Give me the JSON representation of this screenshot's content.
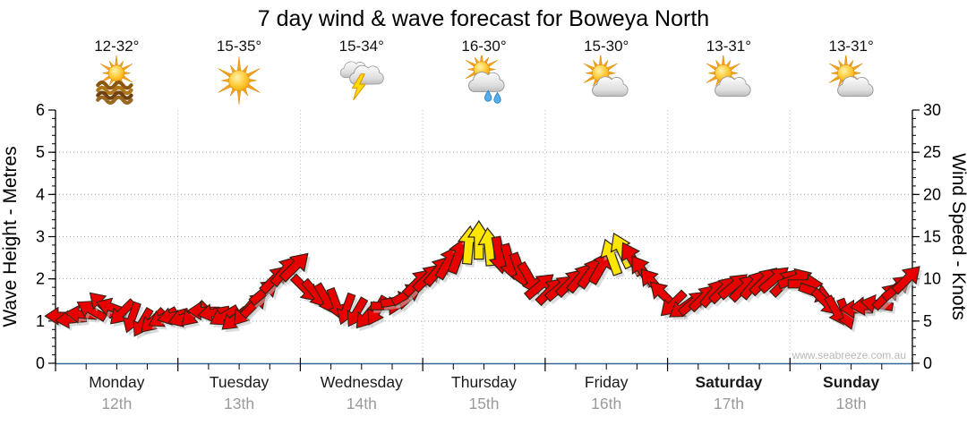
{
  "title": "7 day wind & wave forecast for Boweya North",
  "watermark": "www.seabreeze.com.au",
  "colors": {
    "arrow_red": "#E60000",
    "arrow_yellow": "#FFE600",
    "arrow_outline": "#2E2217",
    "baseline_blue": "#3A6795",
    "grid_grey": "#A6A6A6",
    "day_label": "#1A1A1A",
    "date_grey": "#9A9A9A",
    "watermark_grey": "#B8B8B8",
    "axis_black": "#000000"
  },
  "chart_data": {
    "type": "scatter",
    "subtype": "wind-arrow-forecast",
    "title": "7 day wind & wave forecast for Boweya North",
    "y_left": {
      "label": "Wave Height - Metres",
      "min": 0,
      "max": 6,
      "major_tick": 1,
      "minor_tick": 0.2,
      "gridlines": [
        1,
        2,
        3,
        4,
        5
      ]
    },
    "y_right": {
      "label": "Wind Speed - Knots",
      "min": 0,
      "max": 30,
      "major_tick": 5,
      "minor_tick": 1,
      "gridlines": [
        5,
        10,
        15,
        20,
        25
      ]
    },
    "x": {
      "days": 7,
      "points_per_day": 12,
      "interval_hours": 2
    },
    "days": [
      {
        "name": "Monday",
        "date": "12th",
        "temp_range": "12-32°",
        "icon": "sun-water",
        "weekend": false
      },
      {
        "name": "Tuesday",
        "date": "13th",
        "temp_range": "15-35°",
        "icon": "sunny",
        "weekend": false
      },
      {
        "name": "Wednesday",
        "date": "14th",
        "temp_range": "15-34°",
        "icon": "thunderstorm",
        "weekend": false
      },
      {
        "name": "Thursday",
        "date": "15th",
        "temp_range": "16-30°",
        "icon": "sun-cloud-rain",
        "weekend": false
      },
      {
        "name": "Friday",
        "date": "16th",
        "temp_range": "15-30°",
        "icon": "sun-cloud",
        "weekend": false
      },
      {
        "name": "Saturday",
        "date": "17th",
        "temp_range": "13-31°",
        "icon": "sun-cloud",
        "weekend": true
      },
      {
        "name": "Sunday",
        "date": "18th",
        "temp_range": "13-31°",
        "icon": "sun-cloud",
        "weekend": true
      }
    ],
    "wind_arrows": {
      "format": "[knots, direction_deg_pointing_toward(0=N,90=E,180=S,270=W), color r|y]",
      "points": [
        [
          5.6,
          270,
          "r"
        ],
        [
          5.2,
          265,
          "r"
        ],
        [
          5.8,
          275,
          "r"
        ],
        [
          6.3,
          300,
          "r"
        ],
        [
          7.0,
          315,
          "r"
        ],
        [
          6.6,
          290,
          "r"
        ],
        [
          6.0,
          225,
          "r"
        ],
        [
          5.4,
          200,
          "r"
        ],
        [
          4.8,
          210,
          "r"
        ],
        [
          5.0,
          225,
          "r"
        ],
        [
          5.4,
          240,
          "r"
        ],
        [
          5.6,
          255,
          "r"
        ],
        [
          5.4,
          250,
          "r"
        ],
        [
          5.8,
          225,
          "r"
        ],
        [
          6.2,
          270,
          "r"
        ],
        [
          6.0,
          260,
          "r"
        ],
        [
          5.6,
          240,
          "r"
        ],
        [
          5.2,
          230,
          "r"
        ],
        [
          6.0,
          220,
          "r"
        ],
        [
          7.0,
          45,
          "r"
        ],
        [
          8.5,
          50,
          "r"
        ],
        [
          10.0,
          45,
          "r"
        ],
        [
          11.0,
          40,
          "r"
        ],
        [
          11.5,
          45,
          "r"
        ],
        [
          8.8,
          135,
          "r"
        ],
        [
          8.2,
          140,
          "r"
        ],
        [
          7.6,
          150,
          "r"
        ],
        [
          7.0,
          160,
          "r"
        ],
        [
          6.4,
          200,
          "r"
        ],
        [
          6.0,
          210,
          "r"
        ],
        [
          5.6,
          220,
          "r"
        ],
        [
          6.2,
          210,
          "r"
        ],
        [
          6.8,
          90,
          "r"
        ],
        [
          7.4,
          80,
          "r"
        ],
        [
          8.2,
          60,
          "r"
        ],
        [
          9.6,
          45,
          "r"
        ],
        [
          10.2,
          45,
          "r"
        ],
        [
          11.0,
          40,
          "r"
        ],
        [
          12.0,
          30,
          "r"
        ],
        [
          12.8,
          20,
          "r"
        ],
        [
          14.0,
          5,
          "y"
        ],
        [
          14.6,
          0,
          "y"
        ],
        [
          13.8,
          355,
          "y"
        ],
        [
          12.8,
          170,
          "r"
        ],
        [
          12.0,
          165,
          "r"
        ],
        [
          11.0,
          160,
          "r"
        ],
        [
          10.0,
          150,
          "r"
        ],
        [
          9.2,
          50,
          "r"
        ],
        [
          8.6,
          45,
          "r"
        ],
        [
          9.0,
          50,
          "r"
        ],
        [
          9.6,
          45,
          "r"
        ],
        [
          10.2,
          40,
          "r"
        ],
        [
          10.8,
          35,
          "r"
        ],
        [
          11.4,
          30,
          "r"
        ],
        [
          12.6,
          340,
          "y"
        ],
        [
          13.4,
          335,
          "y"
        ],
        [
          12.4,
          330,
          "r"
        ],
        [
          11.0,
          325,
          "r"
        ],
        [
          9.6,
          320,
          "r"
        ],
        [
          8.2,
          315,
          "r"
        ],
        [
          7.0,
          225,
          "r"
        ],
        [
          6.6,
          235,
          "r"
        ],
        [
          7.2,
          50,
          "r"
        ],
        [
          7.8,
          45,
          "r"
        ],
        [
          8.4,
          40,
          "r"
        ],
        [
          8.8,
          45,
          "r"
        ],
        [
          9.2,
          50,
          "r"
        ],
        [
          9.0,
          45,
          "r"
        ],
        [
          9.4,
          40,
          "r"
        ],
        [
          9.8,
          45,
          "r"
        ],
        [
          10.0,
          50,
          "r"
        ],
        [
          9.6,
          45,
          "r"
        ],
        [
          10.0,
          70,
          "r"
        ],
        [
          9.4,
          90,
          "r"
        ],
        [
          8.4,
          110,
          "r"
        ],
        [
          7.2,
          135,
          "r"
        ],
        [
          6.2,
          150,
          "r"
        ],
        [
          5.8,
          160,
          "r"
        ],
        [
          6.4,
          270,
          "r"
        ],
        [
          6.8,
          265,
          "r"
        ],
        [
          7.0,
          280,
          "r"
        ],
        [
          8.0,
          45,
          "r"
        ],
        [
          9.0,
          50,
          "r"
        ],
        [
          10.0,
          45,
          "r"
        ]
      ]
    }
  }
}
